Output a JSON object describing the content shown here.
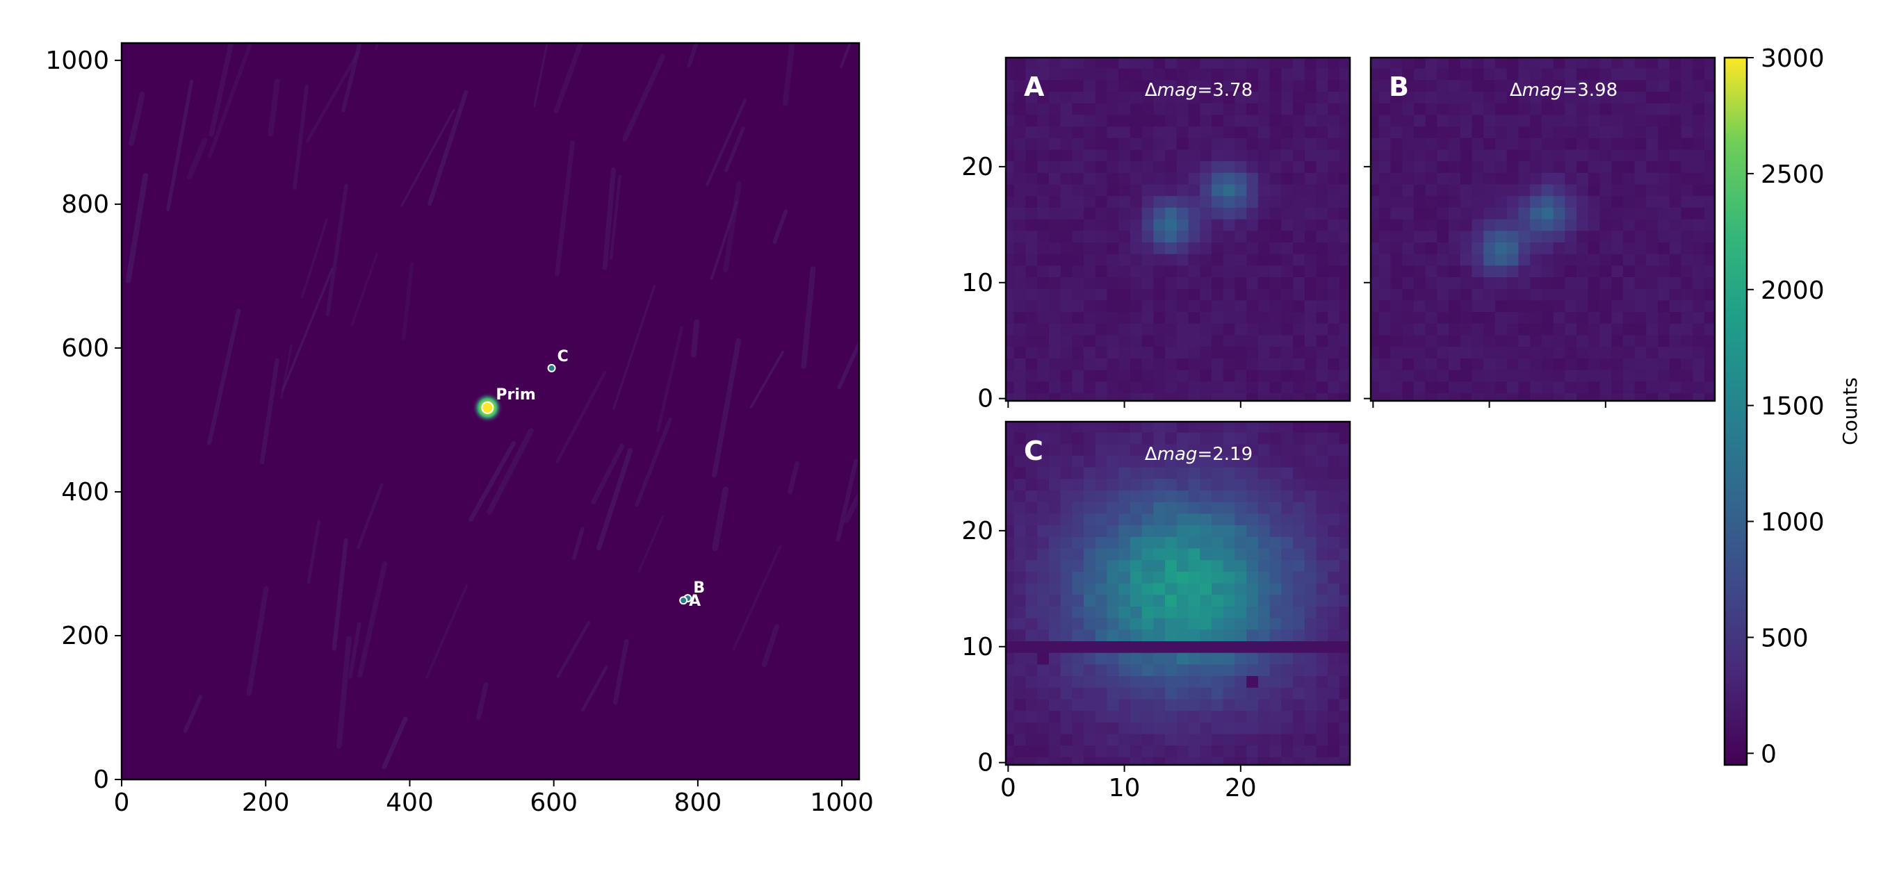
{
  "chart_data": [
    {
      "type": "heatmap",
      "id": "main",
      "xlim": [
        0,
        1024
      ],
      "ylim": [
        0,
        1024
      ],
      "xticks": [
        0,
        200,
        400,
        600,
        800,
        1000
      ],
      "yticks": [
        0,
        200,
        400,
        600,
        800,
        1000
      ],
      "sources": [
        {
          "label": "Prim",
          "x": 508,
          "y": 517,
          "kind": "primary"
        },
        {
          "label": "C",
          "x": 597,
          "y": 572,
          "kind": "companion"
        },
        {
          "label": "B",
          "x": 786,
          "y": 252,
          "kind": "companion"
        },
        {
          "label": "A",
          "x": 780,
          "y": 249,
          "kind": "companion"
        }
      ]
    },
    {
      "type": "heatmap",
      "id": "cutout-A",
      "label": "A",
      "annotation_var": "mag",
      "annotation_value": "=3.78",
      "xlim": [
        0,
        30
      ],
      "ylim": [
        0,
        30
      ],
      "yticks": [
        0,
        10,
        20
      ],
      "blobs": [
        {
          "x": 14,
          "y": 15,
          "peak": 900
        },
        {
          "x": 19,
          "y": 18,
          "peak": 850
        }
      ]
    },
    {
      "type": "heatmap",
      "id": "cutout-B",
      "label": "B",
      "annotation_var": "mag",
      "annotation_value": "=3.98",
      "xlim": [
        0,
        30
      ],
      "ylim": [
        0,
        30
      ],
      "blobs": [
        {
          "x": 11,
          "y": 13,
          "peak": 850
        },
        {
          "x": 15,
          "y": 16,
          "peak": 800
        }
      ]
    },
    {
      "type": "heatmap",
      "id": "cutout-C",
      "label": "C",
      "annotation_var": "mag",
      "annotation_value": "=2.19",
      "xlim": [
        0,
        30
      ],
      "ylim": [
        0,
        30
      ],
      "xticks": [
        0,
        10,
        20
      ],
      "yticks": [
        0,
        10,
        20
      ],
      "blobs": [
        {
          "x": 15,
          "y": 15,
          "peak": 1500
        }
      ]
    }
  ],
  "colorbar": {
    "label": "Counts",
    "colormap": "viridis",
    "range": [
      -50,
      3000
    ],
    "ticks": [
      0,
      500,
      1000,
      1500,
      2000,
      2500,
      3000
    ]
  },
  "colors": {
    "background": "#440154",
    "annotation": "#ffffff"
  }
}
